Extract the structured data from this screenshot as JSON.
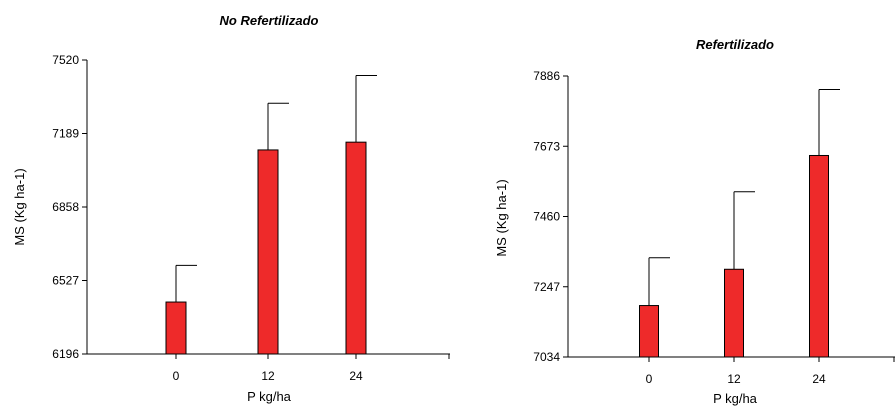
{
  "chart_data": [
    {
      "type": "bar",
      "title": "No Refertilizado",
      "xlabel": "P kg/ha",
      "ylabel": "MS (Kg ha-1)",
      "categories": [
        "0",
        "12",
        "24"
      ],
      "values": [
        6430,
        7115,
        7150
      ],
      "error_upper": [
        6595,
        7325,
        7450
      ],
      "ylim": [
        6196,
        7520
      ],
      "yticks": [
        "6196",
        "6527",
        "6858",
        "7189",
        "7520"
      ],
      "bar_color": "#ee2a2a",
      "grid": false
    },
    {
      "type": "bar",
      "title": "Refertilizado",
      "xlabel": "P kg/ha",
      "ylabel": "MS (Kg ha-1)",
      "categories": [
        "0",
        "12",
        "24"
      ],
      "values": [
        7190,
        7300,
        7645
      ],
      "error_upper": [
        7335,
        7535,
        7845
      ],
      "ylim": [
        7034,
        7886
      ],
      "yticks": [
        "7034",
        "7247",
        "7460",
        "7673",
        "7886"
      ],
      "bar_color": "#ee2a2a",
      "grid": false
    }
  ]
}
